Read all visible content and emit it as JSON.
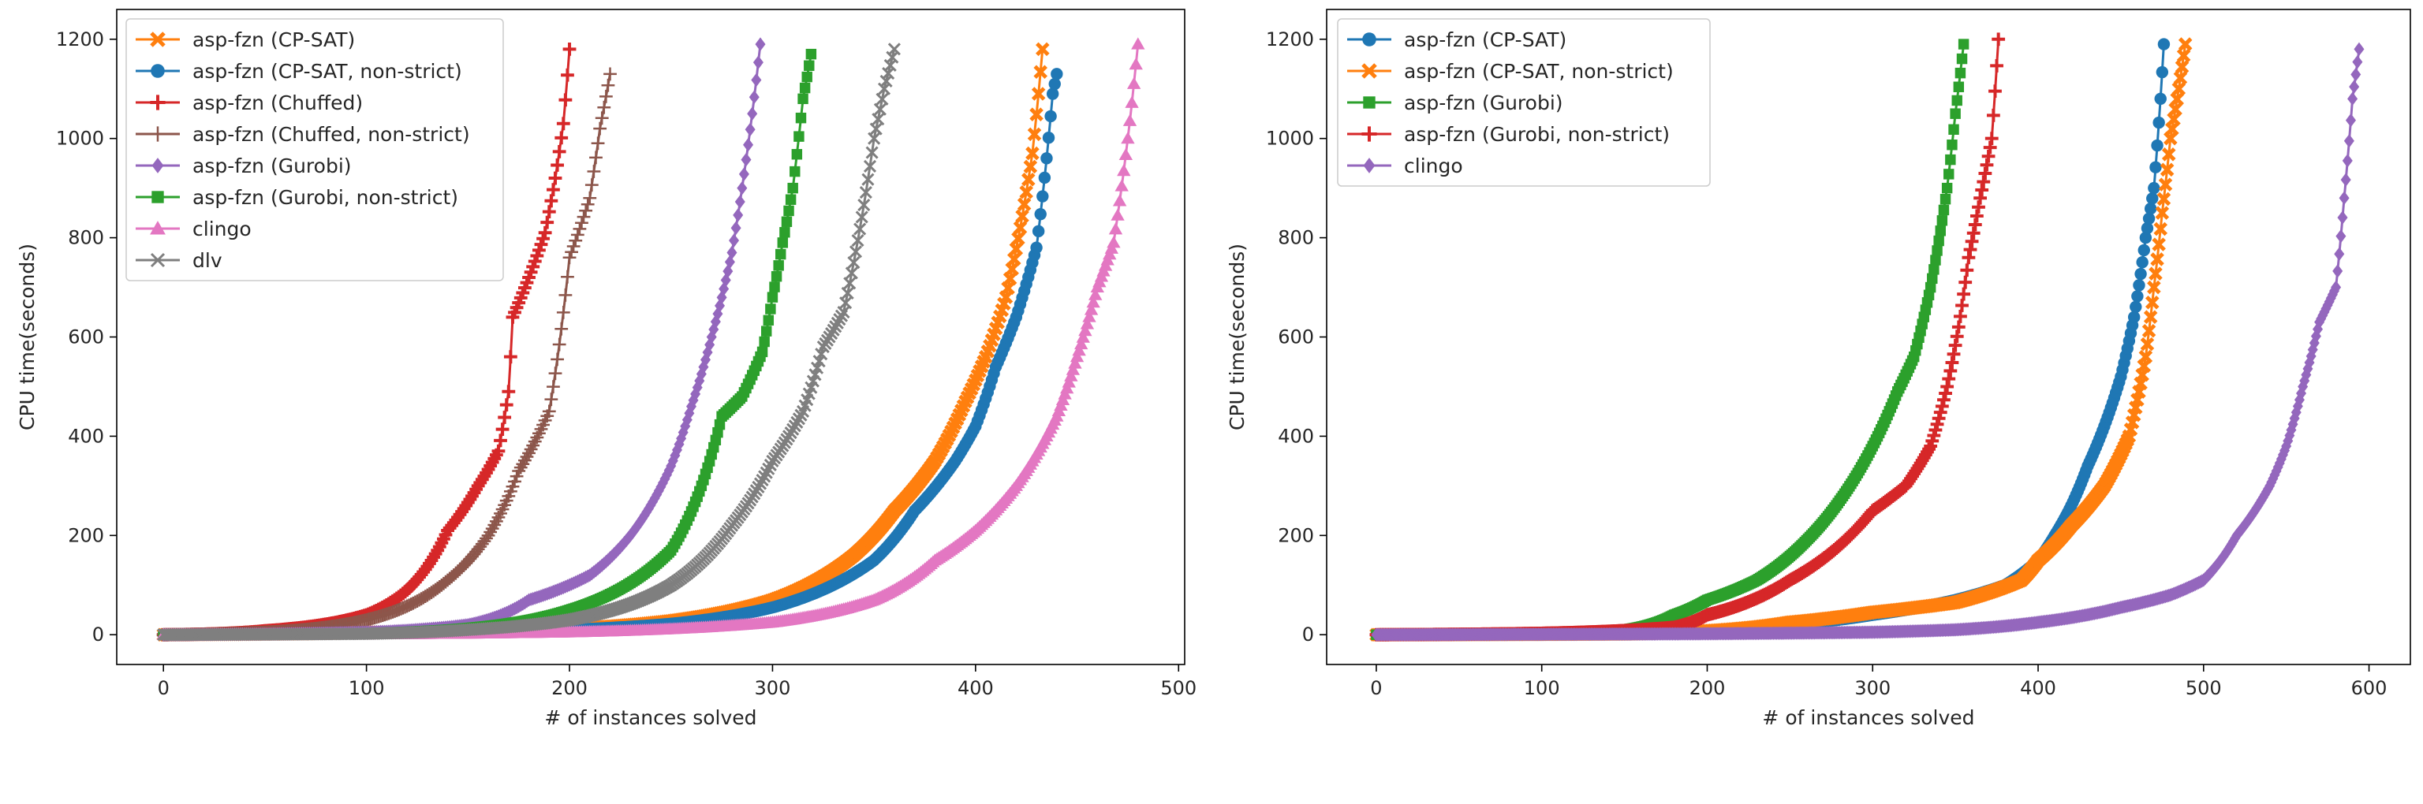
{
  "chart_data": [
    {
      "type": "line",
      "xlabel": "# of instances solved",
      "ylabel": "CPU time(seconds)",
      "xlim": [
        -23,
        503
      ],
      "ylim": [
        -60,
        1260
      ],
      "xticks": [
        0,
        100,
        200,
        300,
        400,
        500
      ],
      "yticks": [
        0,
        200,
        400,
        600,
        800,
        1000,
        1200
      ],
      "grid": false,
      "legend_position": "upper-left",
      "series": [
        {
          "name": "asp-fzn (CP-SAT)",
          "color": "#ff7f0e",
          "marker": "x-filled",
          "points": [
            [
              0,
              0
            ],
            [
              100,
              5
            ],
            [
              200,
              12
            ],
            [
              250,
              28
            ],
            [
              300,
              70
            ],
            [
              340,
              160
            ],
            [
              360,
              250
            ],
            [
              380,
              350
            ],
            [
              395,
              470
            ],
            [
              405,
              560
            ],
            [
              415,
              680
            ],
            [
              422,
              820
            ],
            [
              428,
              970
            ],
            [
              431,
              1090
            ],
            [
              433,
              1180
            ]
          ]
        },
        {
          "name": "asp-fzn (CP-SAT, non-strict)",
          "color": "#1f77b4",
          "marker": "circle",
          "points": [
            [
              0,
              0
            ],
            [
              100,
              3
            ],
            [
              200,
              10
            ],
            [
              250,
              22
            ],
            [
              300,
              55
            ],
            [
              350,
              150
            ],
            [
              370,
              250
            ],
            [
              390,
              350
            ],
            [
              400,
              420
            ],
            [
              410,
              540
            ],
            [
              420,
              640
            ],
            [
              430,
              780
            ],
            [
              435,
              960
            ],
            [
              438,
              1090
            ],
            [
              440,
              1130
            ]
          ]
        },
        {
          "name": "asp-fzn (Chuffed)",
          "color": "#d62728",
          "marker": "plus",
          "points": [
            [
              0,
              0
            ],
            [
              50,
              8
            ],
            [
              100,
              40
            ],
            [
              120,
              90
            ],
            [
              140,
              210
            ],
            [
              155,
              300
            ],
            [
              165,
              370
            ],
            [
              170,
              490
            ],
            [
              172,
              640
            ],
            [
              180,
              720
            ],
            [
              188,
              810
            ],
            [
              193,
              920
            ],
            [
              197,
              1030
            ],
            [
              200,
              1180
            ]
          ]
        },
        {
          "name": "asp-fzn (Chuffed, non-strict)",
          "color": "#8c564b",
          "marker": "thin-plus",
          "points": [
            [
              0,
              0
            ],
            [
              50,
              5
            ],
            [
              100,
              30
            ],
            [
              140,
              110
            ],
            [
              160,
              200
            ],
            [
              175,
              330
            ],
            [
              190,
              450
            ],
            [
              200,
              760
            ],
            [
              210,
              880
            ],
            [
              215,
              1020
            ],
            [
              220,
              1130
            ]
          ]
        },
        {
          "name": "asp-fzn (Gurobi)",
          "color": "#9467bd",
          "marker": "diamond",
          "points": [
            [
              0,
              0
            ],
            [
              100,
              5
            ],
            [
              150,
              20
            ],
            [
              180,
              70
            ],
            [
              210,
              120
            ],
            [
              230,
              200
            ],
            [
              250,
              340
            ],
            [
              260,
              460
            ],
            [
              270,
              600
            ],
            [
              280,
              770
            ],
            [
              285,
              900
            ],
            [
              290,
              1050
            ],
            [
              294,
              1190
            ]
          ]
        },
        {
          "name": "asp-fzn (Gurobi, non-strict)",
          "color": "#2ca02c",
          "marker": "square",
          "points": [
            [
              0,
              0
            ],
            [
              100,
              3
            ],
            [
              200,
              50
            ],
            [
              250,
              170
            ],
            [
              265,
              300
            ],
            [
              275,
              440
            ],
            [
              285,
              480
            ],
            [
              295,
              570
            ],
            [
              300,
              680
            ],
            [
              305,
              790
            ],
            [
              310,
              900
            ],
            [
              315,
              1080
            ],
            [
              319,
              1170
            ]
          ]
        },
        {
          "name": "clingo",
          "color": "#e377c2",
          "marker": "triangle",
          "points": [
            [
              0,
              0
            ],
            [
              100,
              1
            ],
            [
              200,
              5
            ],
            [
              300,
              25
            ],
            [
              350,
              70
            ],
            [
              380,
              150
            ],
            [
              400,
              210
            ],
            [
              420,
              300
            ],
            [
              440,
              440
            ],
            [
              450,
              560
            ],
            [
              460,
              700
            ],
            [
              468,
              790
            ],
            [
              475,
              1000
            ],
            [
              480,
              1190
            ]
          ]
        },
        {
          "name": "dlv",
          "color": "#7f7f7f",
          "marker": "x",
          "points": [
            [
              0,
              0
            ],
            [
              100,
              2
            ],
            [
              150,
              10
            ],
            [
              200,
              30
            ],
            [
              250,
              100
            ],
            [
              280,
              220
            ],
            [
              300,
              350
            ],
            [
              315,
              450
            ],
            [
              325,
              580
            ],
            [
              335,
              650
            ],
            [
              340,
              750
            ],
            [
              350,
              1000
            ],
            [
              355,
              1100
            ],
            [
              360,
              1180
            ]
          ]
        }
      ]
    },
    {
      "type": "line",
      "xlabel": "# of instances solved",
      "ylabel": "CPU time(seconds)",
      "xlim": [
        -30,
        625
      ],
      "ylim": [
        -60,
        1260
      ],
      "xticks": [
        0,
        100,
        200,
        300,
        400,
        500,
        600
      ],
      "yticks": [
        0,
        200,
        400,
        600,
        800,
        1000,
        1200
      ],
      "grid": false,
      "legend_position": "upper-left",
      "series": [
        {
          "name": "asp-fzn (CP-SAT)",
          "color": "#1f77b4",
          "marker": "circle",
          "points": [
            [
              0,
              0
            ],
            [
              150,
              2
            ],
            [
              250,
              20
            ],
            [
              300,
              40
            ],
            [
              350,
              70
            ],
            [
              380,
              100
            ],
            [
              400,
              150
            ],
            [
              410,
              200
            ],
            [
              420,
              260
            ],
            [
              430,
              340
            ],
            [
              440,
              420
            ],
            [
              450,
              520
            ],
            [
              458,
              640
            ],
            [
              465,
              800
            ],
            [
              470,
              900
            ],
            [
              474,
              1080
            ],
            [
              476,
              1190
            ]
          ]
        },
        {
          "name": "asp-fzn (CP-SAT, non-strict)",
          "color": "#ff7f0e",
          "marker": "x-filled",
          "points": [
            [
              0,
              0
            ],
            [
              150,
              2
            ],
            [
              250,
              25
            ],
            [
              300,
              45
            ],
            [
              350,
              65
            ],
            [
              390,
              110
            ],
            [
              400,
              150
            ],
            [
              420,
              220
            ],
            [
              440,
              300
            ],
            [
              455,
              400
            ],
            [
              465,
              560
            ],
            [
              470,
              700
            ],
            [
              475,
              850
            ],
            [
              480,
              1000
            ],
            [
              485,
              1100
            ],
            [
              489,
              1190
            ]
          ]
        },
        {
          "name": "asp-fzn (Gurobi)",
          "color": "#2ca02c",
          "marker": "square",
          "points": [
            [
              0,
              0
            ],
            [
              100,
              3
            ],
            [
              150,
              10
            ],
            [
              180,
              40
            ],
            [
              200,
              70
            ],
            [
              230,
              110
            ],
            [
              260,
              190
            ],
            [
              280,
              270
            ],
            [
              300,
              380
            ],
            [
              315,
              490
            ],
            [
              325,
              560
            ],
            [
              335,
              700
            ],
            [
              345,
              900
            ],
            [
              350,
              1050
            ],
            [
              355,
              1190
            ]
          ]
        },
        {
          "name": "asp-fzn (Gurobi, non-strict)",
          "color": "#d62728",
          "marker": "plus",
          "points": [
            [
              0,
              0
            ],
            [
              100,
              3
            ],
            [
              180,
              15
            ],
            [
              200,
              40
            ],
            [
              250,
              110
            ],
            [
              280,
              180
            ],
            [
              300,
              250
            ],
            [
              320,
              300
            ],
            [
              335,
              380
            ],
            [
              345,
              500
            ],
            [
              352,
              620
            ],
            [
              358,
              760
            ],
            [
              365,
              880
            ],
            [
              372,
              1000
            ],
            [
              376,
              1200
            ]
          ]
        },
        {
          "name": "clingo",
          "color": "#9467bd",
          "marker": "diamond",
          "points": [
            [
              0,
              0
            ],
            [
              200,
              2
            ],
            [
              300,
              5
            ],
            [
              350,
              10
            ],
            [
              400,
              25
            ],
            [
              450,
              55
            ],
            [
              480,
              80
            ],
            [
              500,
              110
            ],
            [
              520,
              200
            ],
            [
              540,
              300
            ],
            [
              550,
              380
            ],
            [
              560,
              500
            ],
            [
              570,
              630
            ],
            [
              580,
              700
            ],
            [
              585,
              880
            ],
            [
              590,
              1080
            ],
            [
              594,
              1180
            ]
          ]
        }
      ]
    }
  ]
}
